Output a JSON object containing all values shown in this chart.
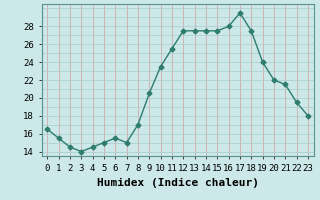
{
  "x": [
    0,
    1,
    2,
    3,
    4,
    5,
    6,
    7,
    8,
    9,
    10,
    11,
    12,
    13,
    14,
    15,
    16,
    17,
    18,
    19,
    20,
    21,
    22,
    23
  ],
  "y": [
    16.5,
    15.5,
    14.5,
    14.0,
    14.5,
    15.0,
    15.5,
    15.0,
    17.0,
    20.5,
    23.5,
    25.5,
    27.5,
    27.5,
    27.5,
    27.5,
    28.0,
    29.5,
    27.5,
    24.0,
    22.0,
    21.5,
    19.5,
    18.0
  ],
  "line_color": "#2e7d6e",
  "marker": "D",
  "marker_size": 2.5,
  "bg_color": "#cce8e8",
  "grid_color_v": "#d4a0a0",
  "grid_color_h": "#a8cccc",
  "xlabel": "Humidex (Indice chaleur)",
  "xlabel_fontsize": 8,
  "ylabel_ticks": [
    14,
    16,
    18,
    20,
    22,
    24,
    26,
    28
  ],
  "ylim": [
    13.5,
    30.5
  ],
  "xlim": [
    -0.5,
    23.5
  ],
  "xtick_labels": [
    "0",
    "1",
    "2",
    "3",
    "4",
    "5",
    "6",
    "7",
    "8",
    "9",
    "10",
    "11",
    "12",
    "13",
    "14",
    "15",
    "16",
    "17",
    "18",
    "19",
    "20",
    "21",
    "22",
    "23"
  ],
  "tick_fontsize": 6.5,
  "line_width": 1.0
}
